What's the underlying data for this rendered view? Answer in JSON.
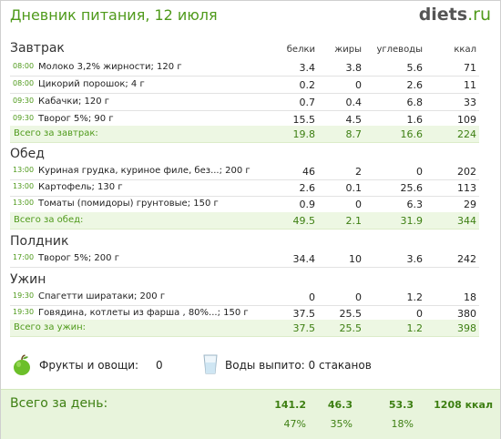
{
  "header": {
    "title": "Дневник питания, 12 июля",
    "logo_main": "diets",
    "logo_tld": ".ru"
  },
  "columns": {
    "protein": "белки",
    "fat": "жиры",
    "carbs": "углеводы",
    "kcal": "ккал"
  },
  "meals": [
    {
      "name": "Завтрак",
      "items": [
        {
          "time": "08:00",
          "food": "Молоко 3,2% жирности; 120 г",
          "protein": "3.4",
          "fat": "3.8",
          "carbs": "5.6",
          "kcal": "71"
        },
        {
          "time": "08:00",
          "food": "Цикорий порошок; 4 г",
          "protein": "0.2",
          "fat": "0",
          "carbs": "2.6",
          "kcal": "11"
        },
        {
          "time": "09:30",
          "food": "Кабачки; 120 г",
          "protein": "0.7",
          "fat": "0.4",
          "carbs": "6.8",
          "kcal": "33"
        },
        {
          "time": "09:30",
          "food": "Творог 5%; 90 г",
          "protein": "15.5",
          "fat": "4.5",
          "carbs": "1.6",
          "kcal": "109"
        }
      ],
      "total": {
        "label": "Всего за завтрак:",
        "protein": "19.8",
        "fat": "8.7",
        "carbs": "16.6",
        "kcal": "224"
      }
    },
    {
      "name": "Обед",
      "items": [
        {
          "time": "13:00",
          "food": "Куриная грудка, куриное филе, без...; 200 г",
          "protein": "46",
          "fat": "2",
          "carbs": "0",
          "kcal": "202"
        },
        {
          "time": "13:00",
          "food": "Картофель; 130 г",
          "protein": "2.6",
          "fat": "0.1",
          "carbs": "25.6",
          "kcal": "113"
        },
        {
          "time": "13:00",
          "food": "Томаты (помидоры) грунтовые; 150 г",
          "protein": "0.9",
          "fat": "0",
          "carbs": "6.3",
          "kcal": "29"
        }
      ],
      "total": {
        "label": "Всего за обед:",
        "protein": "49.5",
        "fat": "2.1",
        "carbs": "31.9",
        "kcal": "344"
      }
    },
    {
      "name": "Полдник",
      "items": [
        {
          "time": "17:00",
          "food": "Творог 5%; 200 г",
          "protein": "34.4",
          "fat": "10",
          "carbs": "3.6",
          "kcal": "242"
        }
      ]
    },
    {
      "name": "Ужин",
      "items": [
        {
          "time": "19:30",
          "food": "Спагетти ширатаки; 200 г",
          "protein": "0",
          "fat": "0",
          "carbs": "1.2",
          "kcal": "18"
        },
        {
          "time": "19:30",
          "food": "Говядина, котлеты из фарша , 80%...; 150 г",
          "protein": "37.5",
          "fat": "25.5",
          "carbs": "0",
          "kcal": "380"
        }
      ],
      "total": {
        "label": "Всего за ужин:",
        "protein": "37.5",
        "fat": "25.5",
        "carbs": "1.2",
        "kcal": "398"
      }
    }
  ],
  "extras": {
    "fruits_label": "Фрукты и овощи:",
    "fruits_value": "0",
    "water_label": "Воды выпито: 0 стаканов",
    "fruit_icon": "apple-icon",
    "water_icon": "glass-icon"
  },
  "day_total": {
    "label": "Всего за день:",
    "protein": "141.2",
    "fat": "46.3",
    "carbs": "53.3",
    "kcal": "1208 ккал",
    "protein_pct": "47%",
    "fat_pct": "35%",
    "carbs_pct": "18%"
  },
  "colors": {
    "accent": "#4f9a1b",
    "total_bg": "#edf7e3",
    "day_bg": "#e8f4dc"
  }
}
